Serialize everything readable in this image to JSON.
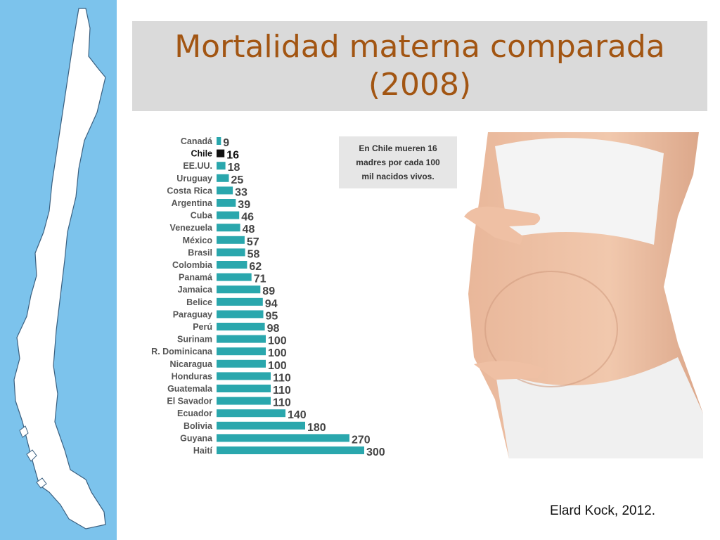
{
  "title": {
    "line1": "Mortalidad materna comparada",
    "line2": "(2008)"
  },
  "note": {
    "line1": "En Chile mueren 16",
    "line2": "madres por cada 100",
    "line3": "mil nacidos vivos."
  },
  "source": "Elard Kock, 2012.",
  "colors": {
    "bar": "#2aa7ad",
    "highlight": "#111111",
    "title": "#a25512",
    "sidebar": "#7cc3ec"
  },
  "chart_data": {
    "type": "bar",
    "orientation": "horizontal",
    "title": "",
    "xlabel": "",
    "ylabel": "",
    "highlight_category": "Chile",
    "categories": [
      "Canadá",
      "Chile",
      "EE.UU.",
      "Uruguay",
      "Costa Rica",
      "Argentina",
      "Cuba",
      "Venezuela",
      "México",
      "Brasil",
      "Colombia",
      "Panamá",
      "Jamaica",
      "Belice",
      "Paraguay",
      "Perú",
      "Surinam",
      "R. Dominicana",
      "Nicaragua",
      "Honduras",
      "Guatemala",
      "El Savador",
      "Ecuador",
      "Bolivia",
      "Guyana",
      "Haití"
    ],
    "values": [
      9,
      16,
      18,
      25,
      33,
      39,
      46,
      48,
      57,
      58,
      62,
      71,
      89,
      94,
      95,
      98,
      100,
      100,
      100,
      110,
      110,
      110,
      140,
      180,
      270,
      300
    ],
    "xlim": [
      0,
      300
    ],
    "grid": false,
    "legend": "none"
  }
}
